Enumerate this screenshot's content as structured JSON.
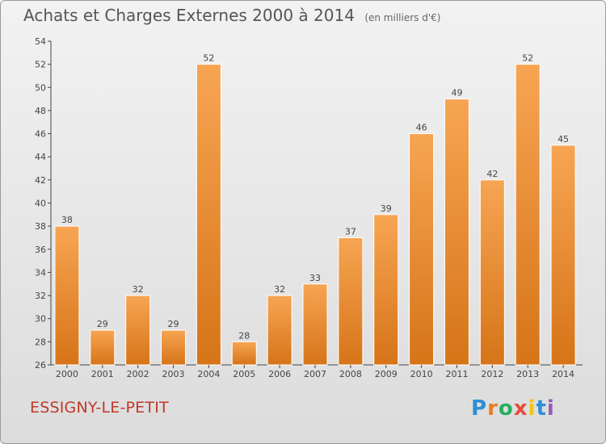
{
  "header": {
    "title": "Achats et Charges Externes 2000 à 2014",
    "unit": "(en milliers d'€)"
  },
  "footer": {
    "commune": "ESSIGNY-LE-PETIT",
    "brand": [
      "P",
      "r",
      "o",
      "x",
      "i",
      "t",
      "i"
    ]
  },
  "colors": {
    "bar_light": "#f7a553",
    "bar_dark": "#d67418",
    "commune": "#c0392b"
  },
  "chart_data": {
    "type": "bar",
    "title": "Achats et Charges Externes 2000 à 2014",
    "categories": [
      "2000",
      "2001",
      "2002",
      "2003",
      "2004",
      "2005",
      "2006",
      "2007",
      "2008",
      "2009",
      "2010",
      "2011",
      "2012",
      "2013",
      "2014"
    ],
    "values": [
      38,
      29,
      32,
      29,
      52,
      28,
      32,
      33,
      37,
      39,
      46,
      49,
      42,
      52,
      45
    ],
    "ylim": [
      26,
      54
    ],
    "yticks": [
      26,
      28,
      30,
      32,
      34,
      36,
      38,
      40,
      42,
      44,
      46,
      48,
      50,
      52,
      54
    ],
    "grid": false,
    "xlabel": "",
    "ylabel": ""
  }
}
